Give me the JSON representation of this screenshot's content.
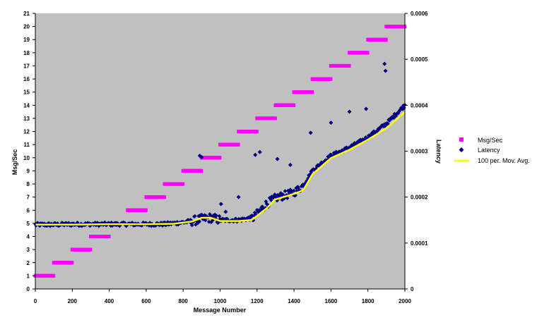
{
  "chart_data": {
    "type": "scatter",
    "x_label": "Message Number",
    "y_left_label": "Msg/Sec",
    "y_right_label": "Latency",
    "x_range": [
      0,
      2000
    ],
    "y_left_range": [
      0,
      21
    ],
    "y_right_range": [
      0,
      0.0006
    ],
    "x_ticks": [
      "0",
      "200",
      "400",
      "600",
      "800",
      "1000",
      "1200",
      "1400",
      "1600",
      "1800",
      "2000"
    ],
    "y_left_ticks": [
      "0",
      "1",
      "2",
      "3",
      "4",
      "5",
      "6",
      "7",
      "8",
      "9",
      "10",
      "11",
      "12",
      "13",
      "14",
      "15",
      "16",
      "17",
      "18",
      "19",
      "20",
      "21"
    ],
    "y_right_ticks": [
      "0",
      "0.0001",
      "0.0002",
      "0.0003",
      "0.0004",
      "0.0005",
      "0.0006"
    ],
    "plot_background": "#c0c0c0",
    "legend_position": "right",
    "series": [
      {
        "name": "Msg/Sec",
        "axis": "left",
        "marker": "square",
        "color": "#ff00ff",
        "note": "constant rate within each block of 100 messages",
        "segments": [
          {
            "x_start": 0,
            "x_end": 100,
            "y": 1
          },
          {
            "x_start": 100,
            "x_end": 200,
            "y": 2
          },
          {
            "x_start": 200,
            "x_end": 300,
            "y": 3
          },
          {
            "x_start": 300,
            "x_end": 400,
            "y": 4
          },
          {
            "x_start": 500,
            "x_end": 600,
            "y": 6
          },
          {
            "x_start": 600,
            "x_end": 700,
            "y": 7
          },
          {
            "x_start": 700,
            "x_end": 800,
            "y": 8
          },
          {
            "x_start": 800,
            "x_end": 900,
            "y": 9
          },
          {
            "x_start": 900,
            "x_end": 1000,
            "y": 10
          },
          {
            "x_start": 1000,
            "x_end": 1100,
            "y": 11
          },
          {
            "x_start": 1100,
            "x_end": 1200,
            "y": 12
          },
          {
            "x_start": 1200,
            "x_end": 1300,
            "y": 13
          },
          {
            "x_start": 1300,
            "x_end": 1400,
            "y": 14
          },
          {
            "x_start": 1400,
            "x_end": 1500,
            "y": 15
          },
          {
            "x_start": 1500,
            "x_end": 1600,
            "y": 16
          },
          {
            "x_start": 1600,
            "x_end": 1700,
            "y": 17
          },
          {
            "x_start": 1700,
            "x_end": 1800,
            "y": 18
          },
          {
            "x_start": 1800,
            "x_end": 1900,
            "y": 19
          },
          {
            "x_start": 1900,
            "x_end": 2000,
            "y": 20
          }
        ]
      },
      {
        "name": "Latency",
        "axis": "right",
        "marker": "diamond",
        "color": "#000080",
        "trend_points": [
          {
            "x": 0,
            "y": 0.00014
          },
          {
            "x": 100,
            "y": 0.00014
          },
          {
            "x": 200,
            "y": 0.000141
          },
          {
            "x": 300,
            "y": 0.000141
          },
          {
            "x": 400,
            "y": 0.000141
          },
          {
            "x": 500,
            "y": 0.000141
          },
          {
            "x": 600,
            "y": 0.000141
          },
          {
            "x": 700,
            "y": 0.000141
          },
          {
            "x": 800,
            "y": 0.000145
          },
          {
            "x": 850,
            "y": 0.000148
          },
          {
            "x": 900,
            "y": 0.000152
          },
          {
            "x": 950,
            "y": 0.000155
          },
          {
            "x": 1000,
            "y": 0.00015
          },
          {
            "x": 1100,
            "y": 0.00015
          },
          {
            "x": 1180,
            "y": 0.000155
          },
          {
            "x": 1250,
            "y": 0.000185
          },
          {
            "x": 1300,
            "y": 0.000198
          },
          {
            "x": 1400,
            "y": 0.00021
          },
          {
            "x": 1450,
            "y": 0.000225
          },
          {
            "x": 1500,
            "y": 0.000258
          },
          {
            "x": 1600,
            "y": 0.00029
          },
          {
            "x": 1700,
            "y": 0.000308
          },
          {
            "x": 1800,
            "y": 0.00033
          },
          {
            "x": 1900,
            "y": 0.00036
          },
          {
            "x": 2000,
            "y": 0.0004
          }
        ],
        "outliers": [
          {
            "x": 890,
            "y": 0.00029
          },
          {
            "x": 900,
            "y": 0.000287
          },
          {
            "x": 1005,
            "y": 0.000185
          },
          {
            "x": 1030,
            "y": 0.000168
          },
          {
            "x": 1100,
            "y": 0.0002
          },
          {
            "x": 1190,
            "y": 0.000292
          },
          {
            "x": 1215,
            "y": 0.000298
          },
          {
            "x": 1310,
            "y": 0.000283
          },
          {
            "x": 1380,
            "y": 0.00027
          },
          {
            "x": 1490,
            "y": 0.00034
          },
          {
            "x": 1600,
            "y": 0.000362
          },
          {
            "x": 1700,
            "y": 0.000386
          },
          {
            "x": 1790,
            "y": 0.000392
          },
          {
            "x": 1890,
            "y": 0.00049
          },
          {
            "x": 1895,
            "y": 0.000475
          }
        ]
      },
      {
        "name": "100 per. Mov. Avg.",
        "axis": "right",
        "type": "line",
        "color": "#ffff00",
        "points": [
          {
            "x": 0,
            "y": 0.00014
          },
          {
            "x": 100,
            "y": 0.00014
          },
          {
            "x": 200,
            "y": 0.00014
          },
          {
            "x": 400,
            "y": 0.000141
          },
          {
            "x": 600,
            "y": 0.000141
          },
          {
            "x": 750,
            "y": 0.000142
          },
          {
            "x": 850,
            "y": 0.000147
          },
          {
            "x": 900,
            "y": 0.000155
          },
          {
            "x": 950,
            "y": 0.000155
          },
          {
            "x": 1000,
            "y": 0.000148
          },
          {
            "x": 1100,
            "y": 0.000148
          },
          {
            "x": 1170,
            "y": 0.00015
          },
          {
            "x": 1250,
            "y": 0.000175
          },
          {
            "x": 1300,
            "y": 0.000195
          },
          {
            "x": 1400,
            "y": 0.000207
          },
          {
            "x": 1450,
            "y": 0.000215
          },
          {
            "x": 1500,
            "y": 0.00025
          },
          {
            "x": 1600,
            "y": 0.000285
          },
          {
            "x": 1700,
            "y": 0.000303
          },
          {
            "x": 1800,
            "y": 0.000325
          },
          {
            "x": 1900,
            "y": 0.00035
          },
          {
            "x": 2000,
            "y": 0.000385
          }
        ]
      }
    ]
  }
}
